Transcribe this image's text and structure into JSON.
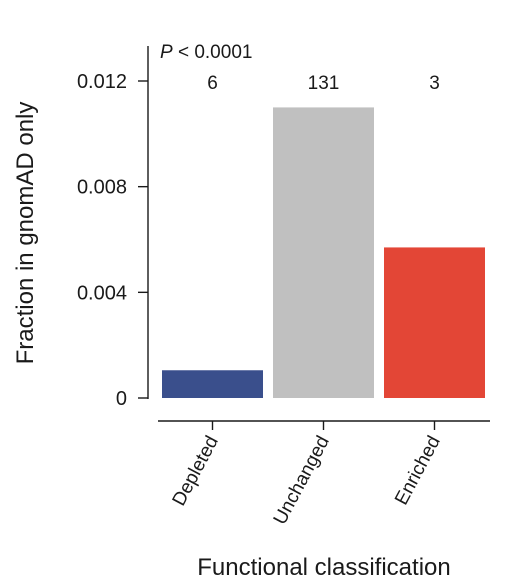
{
  "chart_data": {
    "type": "bar",
    "categories": [
      "Depleted",
      "Unchanged",
      "Enriched"
    ],
    "values": [
      0.00105,
      0.011,
      0.0057
    ],
    "counts": [
      "6",
      "131",
      "3"
    ],
    "colors": [
      "#3a4f8c",
      "#c0c0c0",
      "#e34636"
    ],
    "annotation": {
      "p_italic": "P",
      "p_rest": " < 0.0001"
    },
    "xlabel": "Functional classification",
    "ylabel": "Fraction in gnomAD only",
    "yticks": [
      {
        "value": 0,
        "label": "0"
      },
      {
        "value": 0.004,
        "label": "0.004"
      },
      {
        "value": 0.008,
        "label": "0.008"
      },
      {
        "value": 0.012,
        "label": "0.012"
      }
    ],
    "ylim": [
      0,
      0.012
    ],
    "grid": false,
    "legend": "none"
  }
}
